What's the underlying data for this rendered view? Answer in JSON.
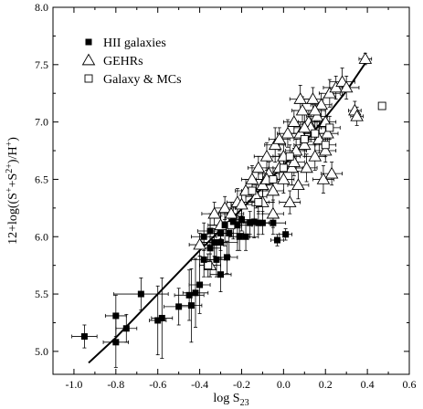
{
  "chart_data": {
    "type": "scatter",
    "xlabel_main": "log S",
    "xlabel_sub": "23",
    "ylabel_parts": [
      {
        "t": "12+log((S"
      },
      {
        "t": "+",
        "sup": true
      },
      {
        "t": "+S"
      },
      {
        "t": "2+",
        "sup": true
      },
      {
        "t": ")/H"
      },
      {
        "t": "+",
        "sup": true
      },
      {
        "t": ")"
      }
    ],
    "xlim": [
      -1.1,
      0.6
    ],
    "ylim": [
      4.8,
      8.0
    ],
    "xticks": [
      -1.0,
      -0.8,
      -0.6,
      -0.4,
      -0.2,
      0.0,
      0.2,
      0.4,
      0.6
    ],
    "xtick_labels": [
      "-1.0",
      "-0.8",
      "-0.6",
      "-0.4",
      "-0.2",
      "0.0",
      "0.2",
      "0.4",
      "0.6"
    ],
    "yticks": [
      5.0,
      5.5,
      6.0,
      6.5,
      7.0,
      7.5,
      8.0
    ],
    "ytick_labels": [
      "5.0",
      "5.5",
      "6.0",
      "6.5",
      "7.0",
      "7.5",
      "8.0"
    ],
    "grid": false,
    "legend_position": "top-left",
    "legend": [
      {
        "label": "HII galaxies",
        "marker": "square-filled"
      },
      {
        "label": "GEHRs",
        "marker": "triangle-open"
      },
      {
        "label": "Galaxy & MCs",
        "marker": "square-open"
      }
    ],
    "series": [
      {
        "name": "HII galaxies",
        "marker": "square-filled",
        "points": [
          [
            -0.95,
            5.13,
            0.06,
            0.1
          ],
          [
            -0.8,
            5.08,
            0.06,
            0.22
          ],
          [
            -0.8,
            5.31,
            0.05,
            0.18
          ],
          [
            -0.75,
            5.2,
            0.05,
            0.12
          ],
          [
            -0.68,
            5.5,
            0.13,
            0.14
          ],
          [
            -0.6,
            5.27,
            0.04,
            0.3
          ],
          [
            -0.58,
            5.29,
            0.05,
            0.35
          ],
          [
            -0.5,
            5.39,
            0.07,
            0.16
          ],
          [
            -0.45,
            5.49,
            0.07,
            0.22
          ],
          [
            -0.44,
            5.4,
            0.05,
            0.32
          ],
          [
            -0.42,
            5.51,
            0.06,
            0.3
          ],
          [
            -0.4,
            5.58,
            0.05,
            0.25
          ],
          [
            -0.38,
            5.8,
            0.06,
            0.15
          ],
          [
            -0.38,
            6.0,
            0.06,
            0.12
          ],
          [
            -0.35,
            5.9,
            0.05,
            0.1
          ],
          [
            -0.33,
            5.95,
            0.06,
            0.12
          ],
          [
            -0.32,
            5.8,
            0.05,
            0.15
          ],
          [
            -0.3,
            5.67,
            0.05,
            0.15
          ],
          [
            -0.3,
            5.95,
            0.08,
            0.14
          ],
          [
            -0.3,
            6.03,
            0.06,
            0.15
          ],
          [
            -0.28,
            6.1,
            0.07,
            0.18
          ],
          [
            -0.27,
            5.82,
            0.05,
            0.14
          ],
          [
            -0.26,
            6.03,
            0.07,
            0.2
          ],
          [
            -0.24,
            6.13,
            0.06,
            0.15
          ],
          [
            -0.22,
            6.1,
            0.07,
            0.22
          ],
          [
            -0.2,
            6.15,
            0.06,
            0.1
          ],
          [
            -0.18,
            6.0,
            0.06,
            0.12
          ],
          [
            -0.16,
            6.12,
            0.05,
            0.1
          ],
          [
            -0.14,
            6.13,
            0.05,
            0.14
          ],
          [
            -0.12,
            6.12,
            0.05,
            0.1
          ],
          [
            -0.1,
            6.12,
            0.06,
            0.1
          ],
          [
            -0.05,
            6.12,
            0.06,
            0.1
          ],
          [
            -0.03,
            5.97,
            0.03,
            0.05
          ],
          [
            0.01,
            6.02,
            0.03,
            0.05
          ],
          [
            -0.21,
            6.0,
            0.05,
            0.12
          ],
          [
            -0.35,
            6.05,
            0.06,
            0.15
          ]
        ]
      },
      {
        "name": "GEHRs",
        "marker": "triangle-open",
        "points": [
          [
            -0.4,
            5.93,
            0.05,
            0.1
          ],
          [
            -0.35,
            5.75,
            0.05,
            0.1
          ],
          [
            -0.33,
            6.2,
            0.06,
            0.1
          ],
          [
            -0.3,
            6.1,
            0.06,
            0.12
          ],
          [
            -0.28,
            6.25,
            0.05,
            0.1
          ],
          [
            -0.25,
            6.2,
            0.06,
            0.1
          ],
          [
            -0.22,
            6.3,
            0.05,
            0.12
          ],
          [
            -0.2,
            6.28,
            0.05,
            0.1
          ],
          [
            -0.18,
            6.4,
            0.05,
            0.1
          ],
          [
            -0.15,
            6.5,
            0.05,
            0.12
          ],
          [
            -0.13,
            6.35,
            0.05,
            0.1
          ],
          [
            -0.12,
            6.6,
            0.05,
            0.1
          ],
          [
            -0.1,
            6.45,
            0.05,
            0.12
          ],
          [
            -0.08,
            6.7,
            0.06,
            0.12
          ],
          [
            -0.07,
            6.55,
            0.05,
            0.1
          ],
          [
            -0.05,
            6.4,
            0.05,
            0.1
          ],
          [
            -0.04,
            6.8,
            0.05,
            0.15
          ],
          [
            -0.02,
            6.6,
            0.05,
            0.12
          ],
          [
            0.0,
            6.7,
            0.05,
            0.1
          ],
          [
            0.0,
            6.5,
            0.05,
            0.12
          ],
          [
            0.02,
            6.9,
            0.05,
            0.12
          ],
          [
            0.03,
            6.3,
            0.05,
            0.1
          ],
          [
            0.04,
            6.6,
            0.05,
            0.15
          ],
          [
            0.05,
            7.0,
            0.05,
            0.1
          ],
          [
            0.06,
            6.75,
            0.05,
            0.1
          ],
          [
            0.07,
            6.45,
            0.05,
            0.12
          ],
          [
            0.08,
            6.9,
            0.05,
            0.1
          ],
          [
            0.09,
            7.1,
            0.05,
            0.12
          ],
          [
            0.1,
            6.8,
            0.05,
            0.1
          ],
          [
            0.11,
            6.6,
            0.05,
            0.12
          ],
          [
            0.12,
            7.0,
            0.05,
            0.1
          ],
          [
            0.13,
            6.95,
            0.05,
            0.12
          ],
          [
            0.14,
            7.2,
            0.05,
            0.1
          ],
          [
            0.15,
            6.7,
            0.05,
            0.12
          ],
          [
            0.16,
            7.05,
            0.05,
            0.1
          ],
          [
            0.17,
            6.85,
            0.05,
            0.12
          ],
          [
            0.18,
            7.15,
            0.05,
            0.1
          ],
          [
            0.19,
            6.5,
            0.05,
            0.12
          ],
          [
            0.2,
            7.0,
            0.05,
            0.12
          ],
          [
            0.21,
            6.9,
            0.05,
            0.1
          ],
          [
            0.22,
            7.25,
            0.05,
            0.12
          ],
          [
            0.23,
            6.55,
            0.05,
            0.1
          ],
          [
            0.25,
            7.3,
            0.06,
            0.1
          ],
          [
            0.28,
            7.35,
            0.06,
            0.12
          ],
          [
            0.3,
            7.3,
            0.06,
            0.1
          ],
          [
            0.34,
            7.1,
            0.03,
            0.08
          ],
          [
            0.35,
            7.05,
            0.03,
            0.08
          ],
          [
            0.39,
            7.55,
            0.03,
            0.05
          ],
          [
            -0.05,
            6.2,
            0.05,
            0.12
          ],
          [
            -0.1,
            6.3,
            0.05,
            0.1
          ],
          [
            0.05,
            6.65,
            0.05,
            0.12
          ],
          [
            0.1,
            6.95,
            0.05,
            0.12
          ],
          [
            -0.02,
            6.85,
            0.05,
            0.1
          ],
          [
            0.15,
            7.1,
            0.05,
            0.1
          ],
          [
            -0.08,
            6.5,
            0.05,
            0.1
          ],
          [
            0.08,
            7.2,
            0.05,
            0.12
          ],
          [
            0.2,
            6.75,
            0.05,
            0.1
          ]
        ]
      },
      {
        "name": "Galaxy & MCs",
        "marker": "square-open",
        "points": [
          [
            -0.36,
            5.75,
            0.04,
            0.1
          ],
          [
            -0.25,
            6.1,
            0.05,
            0.1
          ],
          [
            -0.15,
            6.4,
            0.05,
            0.1
          ],
          [
            -0.12,
            6.3,
            0.05,
            0.1
          ],
          [
            -0.05,
            6.5,
            0.05,
            0.1
          ],
          [
            0.0,
            6.6,
            0.05,
            0.1
          ],
          [
            0.03,
            6.7,
            0.05,
            0.1
          ],
          [
            0.1,
            6.85,
            0.05,
            0.1
          ],
          [
            0.15,
            6.9,
            0.05,
            0.1
          ],
          [
            0.2,
            6.8,
            0.05,
            0.1
          ],
          [
            0.22,
            6.95,
            0.05,
            0.1
          ],
          [
            0.47,
            7.14,
            0.0,
            0.0
          ]
        ]
      }
    ],
    "fit_line": {
      "x": [
        -0.93,
        -0.8,
        -0.7,
        -0.6,
        -0.5,
        -0.4,
        -0.3,
        -0.2,
        -0.1,
        0.0,
        0.1,
        0.2,
        0.3,
        0.4
      ],
      "y": [
        4.9,
        5.12,
        5.31,
        5.5,
        5.69,
        5.88,
        6.06,
        6.24,
        6.43,
        6.62,
        6.82,
        7.04,
        7.27,
        7.54
      ]
    }
  }
}
